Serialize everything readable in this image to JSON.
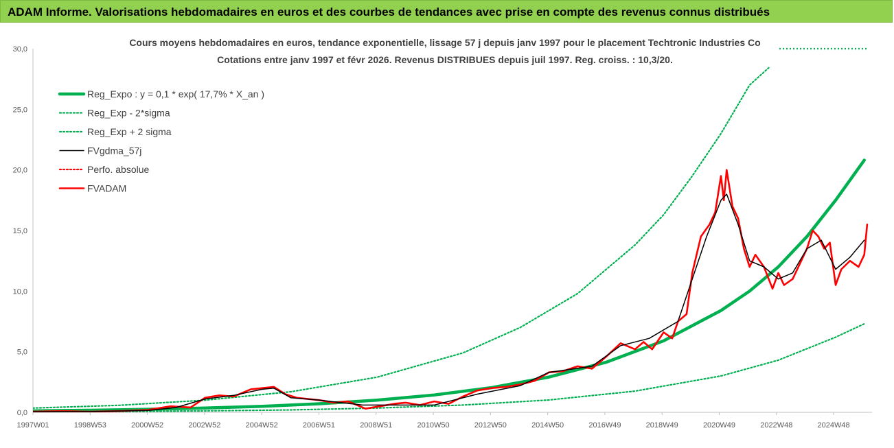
{
  "banner": {
    "title": "ADAM Informe. Valorisations hebdomadaires en euros et des courbes de tendances avec prise en compte des revenus connus distribués"
  },
  "colors": {
    "banner_bg": "#92d050",
    "trend": "#00b050",
    "smooth": "#000000",
    "price": "#ff0000",
    "grid": "#d9d9d9"
  },
  "chart_data": {
    "type": "line",
    "title_lines": [
      "Cours moyens hebdomadaires en euros, tendance exponentielle, lissage 57 j depuis janv 1997 pour le placement Techtronic Industries Co",
      "Cotations entre janv 1997 et févr 2026. Revenus DISTRIBUES depuis juil 1997. Reg. croiss. : 10,3/20."
    ],
    "xlabel": "",
    "ylabel": "",
    "ylim": [
      0,
      30
    ],
    "y_ticks": [
      "0,0",
      "5,0",
      "10,0",
      "15,0",
      "20,0",
      "25,0",
      "30,0"
    ],
    "x_ticks": [
      "1997W01",
      "1998W53",
      "2000W52",
      "2002W52",
      "2004W52",
      "2006W51",
      "2008W51",
      "2010W50",
      "2012W50",
      "2014W50",
      "2016W49",
      "2018W49",
      "2020W49",
      "2022W48",
      "2024W48"
    ],
    "x_range": [
      1997.0,
      2026.15
    ],
    "grid": false,
    "legend_position": "top-left",
    "legend": [
      "Reg_Expo : y = 0,1 * exp( 17,7% *  X_an )",
      "Reg_Exp - 2*sigma",
      "Reg_Exp + 2 sigma",
      "FVgdma_57j",
      "Perfo. absolue",
      "FVADAM"
    ],
    "series": [
      {
        "name": "Reg_Expo : y = 0,1 * exp( 17,7% *  X_an )",
        "style": "solid-thick",
        "color": "#00b050",
        "x": [
          1997,
          1999,
          2001,
          2003,
          2005,
          2007,
          2009,
          2011,
          2013,
          2015,
          2017,
          2019,
          2021,
          2022,
          2023,
          2024,
          2025,
          2026
        ],
        "y": [
          0.12,
          0.17,
          0.25,
          0.35,
          0.5,
          0.71,
          1.0,
          1.43,
          2.04,
          2.91,
          4.14,
          5.9,
          8.4,
          10.0,
          12.0,
          14.5,
          17.5,
          20.8
        ]
      },
      {
        "name": "Reg_Exp - 2*sigma",
        "style": "dotted",
        "color": "#00b050",
        "x": [
          1997,
          2000,
          2003,
          2006,
          2009,
          2012,
          2015,
          2018,
          2021,
          2023,
          2025,
          2026
        ],
        "y": [
          0.04,
          0.07,
          0.12,
          0.2,
          0.35,
          0.6,
          1.02,
          1.75,
          3.0,
          4.3,
          6.2,
          7.3
        ]
      },
      {
        "name": "Reg_Exp + 2 sigma",
        "style": "dotted",
        "color": "#00b050",
        "x": [
          1997,
          2000,
          2003,
          2006,
          2009,
          2012,
          2014,
          2016,
          2018,
          2019,
          2020,
          2021,
          2022,
          2022.7
        ],
        "y": [
          0.35,
          0.58,
          1.0,
          1.7,
          2.9,
          4.9,
          7.0,
          9.8,
          13.8,
          16.3,
          19.5,
          23.0,
          27.0,
          28.5
        ]
      },
      {
        "name": "FVgdma_57j",
        "style": "solid",
        "color": "#000000",
        "x": [
          1997,
          1999,
          2001,
          2002,
          2003,
          2004,
          2005,
          2005.4,
          2006,
          2007,
          2008.5,
          2009.5,
          2011,
          2012.5,
          2014,
          2015,
          2016.5,
          2017.5,
          2018.5,
          2019.5,
          2020,
          2020.5,
          2021,
          2021.2,
          2021.6,
          2022,
          2022.5,
          2023,
          2023.5,
          2024,
          2024.5,
          2025,
          2025.5,
          2026
        ],
        "y": [
          0.05,
          0.06,
          0.15,
          0.4,
          1.1,
          1.4,
          1.9,
          2.0,
          1.2,
          1.0,
          0.6,
          0.6,
          0.6,
          1.5,
          2.2,
          3.3,
          3.8,
          5.5,
          6.1,
          7.5,
          11.0,
          14.5,
          17.5,
          18.0,
          15.5,
          12.5,
          12.0,
          11.0,
          11.5,
          13.5,
          14.2,
          11.8,
          12.8,
          14.2
        ]
      },
      {
        "name": "Perfo. absolue",
        "style": "dotted",
        "color": "#ff0000",
        "x": [],
        "y": []
      },
      {
        "name": "FVADAM",
        "style": "solid-thick",
        "color": "#ff0000",
        "x": [
          1997,
          1998,
          1999,
          2000,
          2001,
          2001.8,
          2002.5,
          2003,
          2003.5,
          2004,
          2004.6,
          2005,
          2005.4,
          2005.8,
          2006.2,
          2007,
          2007.5,
          2008,
          2008.6,
          2009.1,
          2009.6,
          2010,
          2010.5,
          2011,
          2011.5,
          2012,
          2012.5,
          2013,
          2013.5,
          2014,
          2014.5,
          2015,
          2015.5,
          2016,
          2016.5,
          2017,
          2017.5,
          2018,
          2018.3,
          2018.6,
          2019,
          2019.3,
          2019.5,
          2019.8,
          2020,
          2020.3,
          2020.6,
          2020.8,
          2021,
          2021.1,
          2021.2,
          2021.4,
          2021.6,
          2021.8,
          2022,
          2022.2,
          2022.5,
          2022.8,
          2023,
          2023.2,
          2023.5,
          2023.8,
          2024,
          2024.2,
          2024.4,
          2024.6,
          2024.8,
          2025,
          2025.2,
          2025.5,
          2025.8,
          2026,
          2026.1
        ],
        "y": [
          0.05,
          0.1,
          0.05,
          0.1,
          0.2,
          0.5,
          0.4,
          1.2,
          1.4,
          1.3,
          1.9,
          2.0,
          2.1,
          1.5,
          1.2,
          1.0,
          0.8,
          0.9,
          0.3,
          0.5,
          0.7,
          0.8,
          0.6,
          0.9,
          0.7,
          1.3,
          1.8,
          2.0,
          2.1,
          2.3,
          2.6,
          3.3,
          3.4,
          3.8,
          3.6,
          4.6,
          5.7,
          5.2,
          5.8,
          5.2,
          6.6,
          6.1,
          7.5,
          8.1,
          11.5,
          14.5,
          15.5,
          16.5,
          19.5,
          17.5,
          20.0,
          17.0,
          16.0,
          13.5,
          12.0,
          13.0,
          12.0,
          10.2,
          11.5,
          10.5,
          11.0,
          12.5,
          13.5,
          15.0,
          14.5,
          13.5,
          14.0,
          10.5,
          11.8,
          12.5,
          12.0,
          13.0,
          15.5
        ]
      }
    ]
  }
}
